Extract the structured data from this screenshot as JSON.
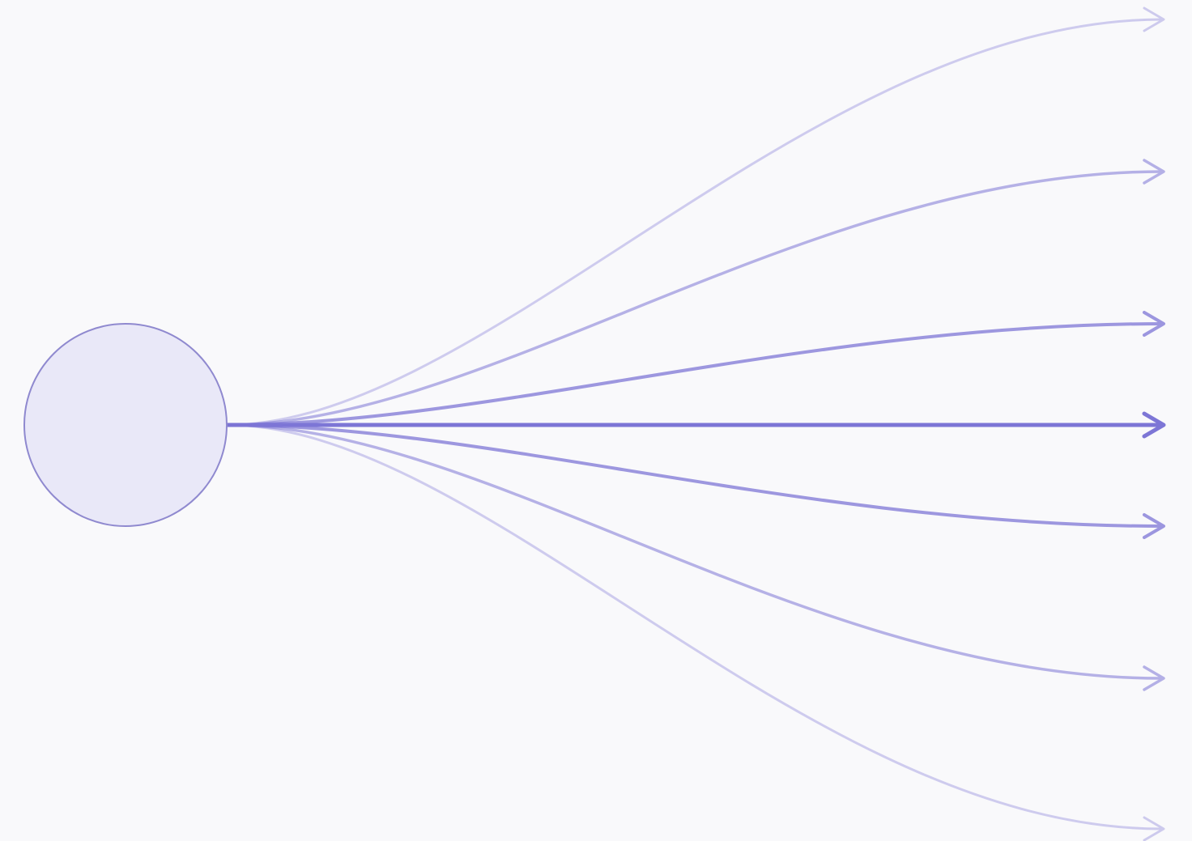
{
  "diagram": {
    "background": "#f9f9fb",
    "source_node": {
      "fill": "#e9e8f8",
      "stroke": "#8f89cf"
    },
    "edge_color": "#7d76d6",
    "edges": [
      {
        "name": "edge-1",
        "opacity": 0.35
      },
      {
        "name": "edge-2",
        "opacity": 0.55
      },
      {
        "name": "edge-3",
        "opacity": 0.75
      },
      {
        "name": "edge-4",
        "opacity": 1.0
      },
      {
        "name": "edge-5",
        "opacity": 0.75
      },
      {
        "name": "edge-6",
        "opacity": 0.55
      },
      {
        "name": "edge-7",
        "opacity": 0.35
      }
    ]
  }
}
